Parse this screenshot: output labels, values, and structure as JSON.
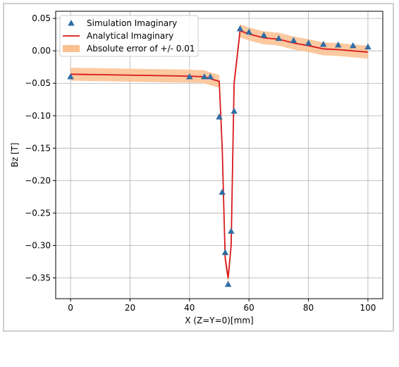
{
  "chart_data": {
    "type": "line",
    "xlabel": "X (Z=Y=0)[mm]",
    "ylabel": "Bz [T]",
    "xlim": [
      -5,
      105
    ],
    "ylim": [
      -0.382,
      0.061
    ],
    "x_ticks": [
      0,
      20,
      40,
      60,
      80,
      100
    ],
    "x_tick_labels": [
      "0",
      "20",
      "40",
      "60",
      "80",
      "100"
    ],
    "y_ticks": [
      0.05,
      0.0,
      -0.05,
      -0.1,
      -0.15,
      -0.2,
      -0.25,
      -0.3,
      -0.35
    ],
    "y_tick_labels": [
      "0.05",
      "0.00",
      "−0.05",
      "−0.10",
      "−0.15",
      "−0.20",
      "−0.25",
      "−0.30",
      "−0.35"
    ],
    "grid": true,
    "legend_position": "upper-left",
    "colors": {
      "simulation": "#2e6da4",
      "analytical": "#d7191c",
      "error_band": "#fbc08f"
    },
    "legend": [
      {
        "key": "simulation",
        "label": "Simulation Imaginary",
        "marker": "triangle"
      },
      {
        "key": "analytical",
        "label": "Analytical Imaginary",
        "marker": "line"
      },
      {
        "key": "error_band",
        "label": "Absolute error of +/- 0.01",
        "marker": "patch"
      }
    ],
    "series": [
      {
        "name": "Simulation Imaginary",
        "kind": "scatter",
        "points": [
          {
            "x": 0,
            "y": -0.04
          },
          {
            "x": 40,
            "y": -0.04
          },
          {
            "x": 45,
            "y": -0.04
          },
          {
            "x": 47,
            "y": -0.04
          },
          {
            "x": 50,
            "y": -0.102
          },
          {
            "x": 51,
            "y": -0.218
          },
          {
            "x": 52,
            "y": -0.311
          },
          {
            "x": 53,
            "y": -0.36
          },
          {
            "x": 54,
            "y": -0.278
          },
          {
            "x": 55,
            "y": -0.093
          },
          {
            "x": 57,
            "y": 0.034
          },
          {
            "x": 60,
            "y": 0.029
          },
          {
            "x": 65,
            "y": 0.024
          },
          {
            "x": 70,
            "y": 0.019
          },
          {
            "x": 75,
            "y": 0.016
          },
          {
            "x": 80,
            "y": 0.012
          },
          {
            "x": 85,
            "y": 0.01
          },
          {
            "x": 90,
            "y": 0.009
          },
          {
            "x": 95,
            "y": 0.008
          },
          {
            "x": 100,
            "y": 0.006
          }
        ]
      },
      {
        "name": "Analytical Imaginary",
        "kind": "line",
        "points": [
          {
            "x": 0,
            "y": -0.036
          },
          {
            "x": 40,
            "y": -0.039
          },
          {
            "x": 45,
            "y": -0.04
          },
          {
            "x": 47,
            "y": -0.043
          },
          {
            "x": 50,
            "y": -0.047
          },
          {
            "x": 51,
            "y": -0.15
          },
          {
            "x": 52,
            "y": -0.32
          },
          {
            "x": 53,
            "y": -0.35
          },
          {
            "x": 54,
            "y": -0.3
          },
          {
            "x": 55,
            "y": -0.05
          },
          {
            "x": 56,
            "y": -0.01
          },
          {
            "x": 57,
            "y": 0.031
          },
          {
            "x": 60,
            "y": 0.026
          },
          {
            "x": 65,
            "y": 0.02
          },
          {
            "x": 70,
            "y": 0.018
          },
          {
            "x": 75,
            "y": 0.012
          },
          {
            "x": 80,
            "y": 0.008
          },
          {
            "x": 85,
            "y": 0.003
          },
          {
            "x": 90,
            "y": 0.002
          },
          {
            "x": 95,
            "y": 0.0
          },
          {
            "x": 100,
            "y": -0.002
          }
        ]
      },
      {
        "name": "Absolute error of +/- 0.01",
        "kind": "band",
        "offset": 0.01,
        "base_series": "Analytical Imaginary"
      }
    ]
  }
}
